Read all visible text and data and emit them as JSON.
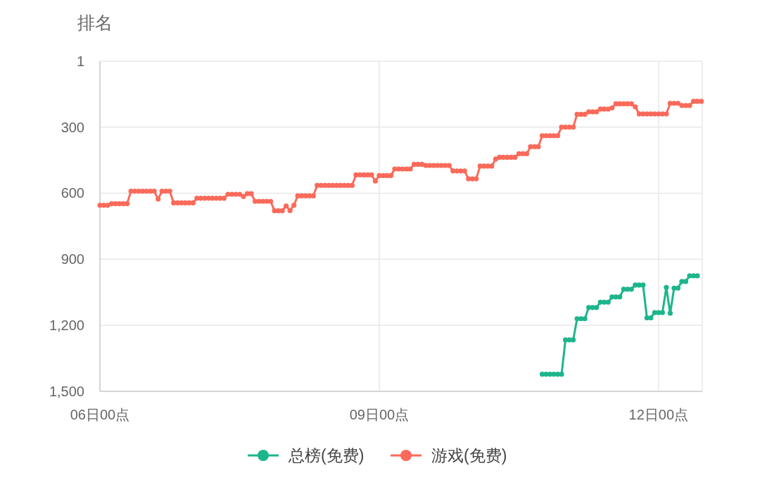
{
  "chart_data": {
    "type": "line",
    "ylabel": "排名",
    "categories": [
      "06日00点",
      null,
      null,
      null,
      null,
      null,
      null,
      null,
      null,
      null,
      null,
      null,
      null,
      null,
      null,
      null,
      null,
      null,
      null,
      null,
      null,
      null,
      null,
      null,
      null,
      null,
      null,
      null,
      null,
      null,
      null,
      null,
      null,
      null,
      null,
      null,
      null,
      null,
      null,
      null,
      null,
      null,
      null,
      null,
      null,
      null,
      null,
      null,
      null,
      null,
      null,
      null,
      null,
      null,
      null,
      null,
      null,
      null,
      null,
      null,
      null,
      null,
      null,
      null,
      null,
      null,
      null,
      null,
      null,
      null,
      null,
      null,
      "09日00点",
      null,
      null,
      null,
      null,
      null,
      null,
      null,
      null,
      null,
      null,
      null,
      null,
      null,
      null,
      null,
      null,
      null,
      null,
      null,
      null,
      null,
      null,
      null,
      null,
      null,
      null,
      null,
      null,
      null,
      null,
      null,
      null,
      null,
      null,
      null,
      null,
      null,
      null,
      null,
      null,
      null,
      null,
      null,
      null,
      null,
      null,
      null,
      null,
      null,
      null,
      null,
      null,
      null,
      null,
      null,
      null,
      null,
      null,
      null,
      null,
      null,
      null,
      null,
      null,
      null,
      null,
      null,
      null,
      null,
      null,
      null,
      "12日00点",
      null,
      null,
      null,
      null,
      null,
      null,
      null,
      null,
      null,
      null,
      null
    ],
    "ylim": [
      1500,
      1
    ],
    "yticks": [
      1,
      300,
      600,
      900,
      {
        "value": 1200,
        "label": "1,200"
      },
      {
        "value": 1500,
        "label": "1,500"
      }
    ],
    "grid": true,
    "legend": "bottom",
    "marker": "circle",
    "line_style": "solid",
    "series": [
      {
        "name": "总榜(免费)",
        "color": "#1db58c",
        "values": [
          null,
          null,
          null,
          null,
          null,
          null,
          null,
          null,
          null,
          null,
          null,
          null,
          null,
          null,
          null,
          null,
          null,
          null,
          null,
          null,
          null,
          null,
          null,
          null,
          null,
          null,
          null,
          null,
          null,
          null,
          null,
          null,
          null,
          null,
          null,
          null,
          null,
          null,
          null,
          null,
          null,
          null,
          null,
          null,
          null,
          null,
          null,
          null,
          null,
          null,
          null,
          null,
          null,
          null,
          null,
          null,
          null,
          null,
          null,
          null,
          null,
          null,
          null,
          null,
          null,
          null,
          null,
          null,
          null,
          null,
          null,
          null,
          null,
          null,
          null,
          null,
          null,
          null,
          null,
          null,
          null,
          null,
          null,
          null,
          null,
          null,
          null,
          null,
          null,
          null,
          null,
          null,
          null,
          null,
          null,
          null,
          null,
          null,
          null,
          null,
          null,
          null,
          null,
          null,
          null,
          null,
          null,
          null,
          null,
          null,
          null,
          null,
          null,
          null,
          1422,
          1422,
          1422,
          1422,
          1422,
          1422,
          1266,
          1266,
          1266,
          1170,
          1170,
          1170,
          1119,
          1119,
          1119,
          1095,
          1095,
          1095,
          1071,
          1071,
          1071,
          1036,
          1036,
          1036,
          1017,
          1017,
          1017,
          1166,
          1166,
          1142,
          1142,
          1142,
          1028,
          1145,
          1031,
          1031,
          1001,
          1001,
          975,
          975,
          975,
          null
        ]
      },
      {
        "name": "游戏(免费)",
        "color": "#fa6a5a",
        "values": [
          655,
          655,
          655,
          648,
          648,
          648,
          648,
          648,
          591,
          591,
          591,
          591,
          591,
          591,
          591,
          627,
          591,
          591,
          591,
          644,
          644,
          644,
          644,
          644,
          644,
          623,
          623,
          623,
          623,
          623,
          623,
          623,
          623,
          605,
          605,
          605,
          605,
          615,
          602,
          602,
          637,
          637,
          637,
          637,
          637,
          680,
          680,
          680,
          658,
          679,
          655,
          612,
          612,
          612,
          612,
          612,
          565,
          565,
          565,
          565,
          565,
          565,
          565,
          565,
          565,
          565,
          517,
          517,
          517,
          517,
          517,
          545,
          520,
          520,
          520,
          520,
          490,
          490,
          490,
          490,
          490,
          469,
          469,
          469,
          474,
          474,
          474,
          474,
          474,
          474,
          474,
          499,
          499,
          499,
          499,
          535,
          535,
          535,
          477,
          477,
          477,
          477,
          445,
          437,
          437,
          437,
          437,
          437,
          421,
          421,
          421,
          389,
          389,
          389,
          339,
          339,
          339,
          339,
          339,
          300,
          300,
          300,
          300,
          242,
          242,
          242,
          231,
          231,
          231,
          218,
          218,
          218,
          213,
          194,
          194,
          194,
          194,
          194,
          208,
          240,
          240,
          240,
          240,
          240,
          240,
          240,
          240,
          192,
          192,
          192,
          202,
          202,
          202,
          183,
          183,
          183
        ]
      }
    ]
  }
}
